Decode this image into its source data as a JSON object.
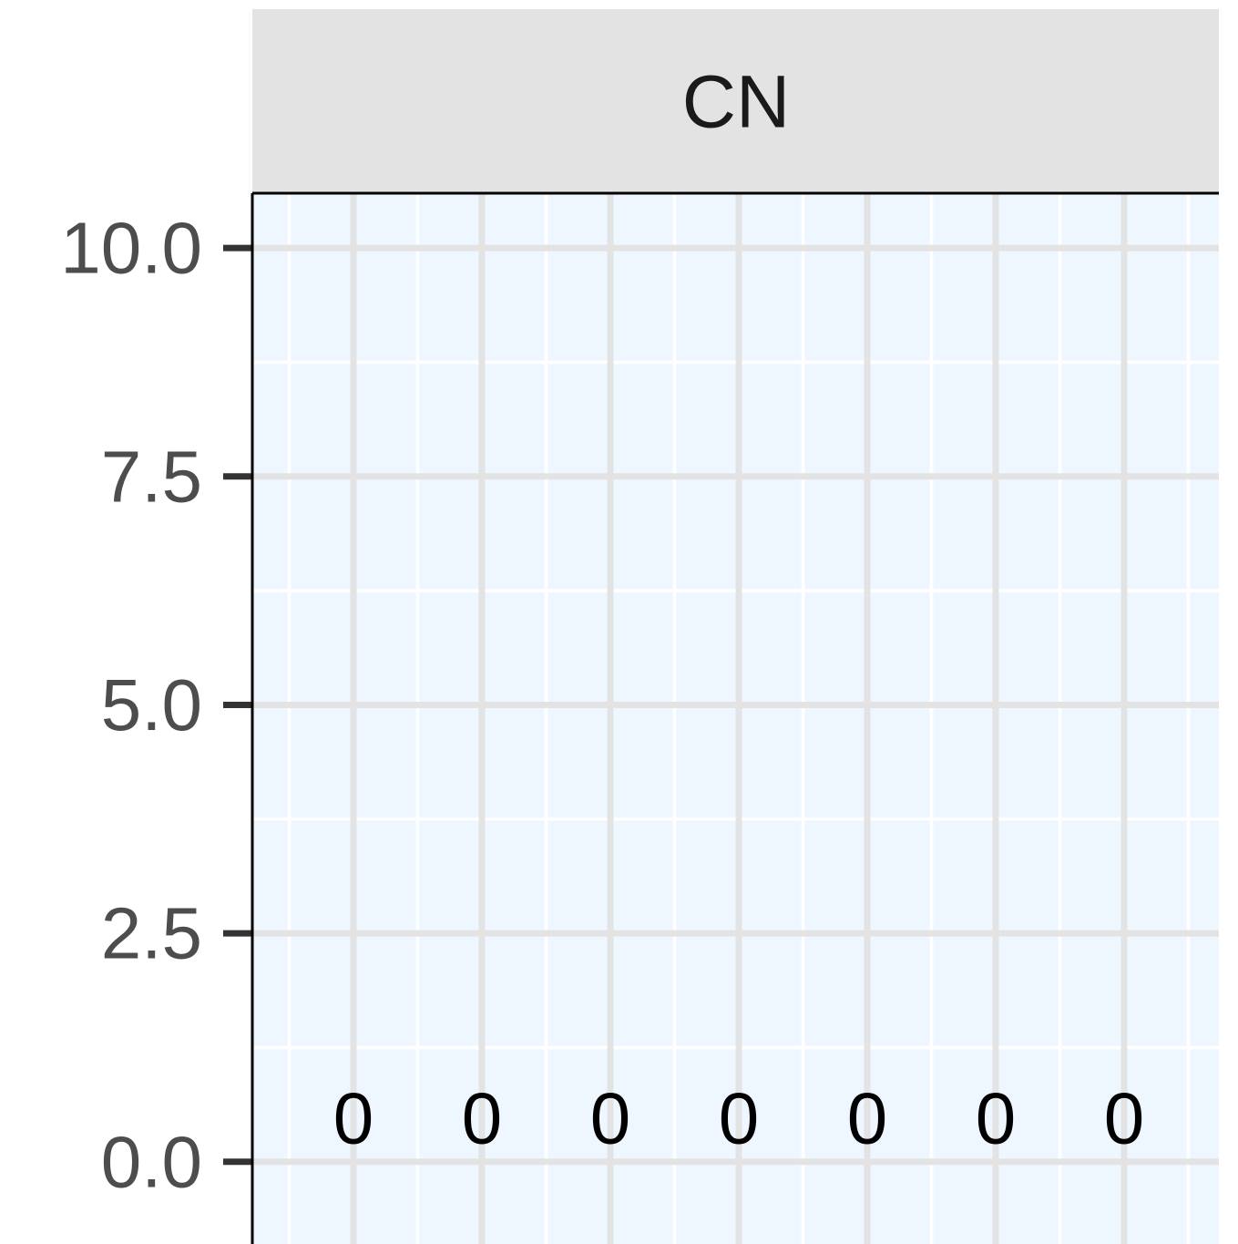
{
  "chart_data": {
    "type": "bar",
    "title": "CN",
    "categories": [
      null,
      null,
      null,
      null,
      null,
      null,
      null
    ],
    "values": [
      0,
      0,
      0,
      0,
      0,
      0,
      0
    ],
    "color": "#bcbcbc",
    "background": "#eef7ff",
    "ylim": [
      -0.9,
      10.6
    ],
    "yticks": [
      {
        "value": 0,
        "label": "0.0"
      },
      2.5,
      {
        "value": 5,
        "label": "5.0"
      },
      7.5,
      {
        "value": 10,
        "label": "10.0"
      }
    ],
    "grid": true
  }
}
